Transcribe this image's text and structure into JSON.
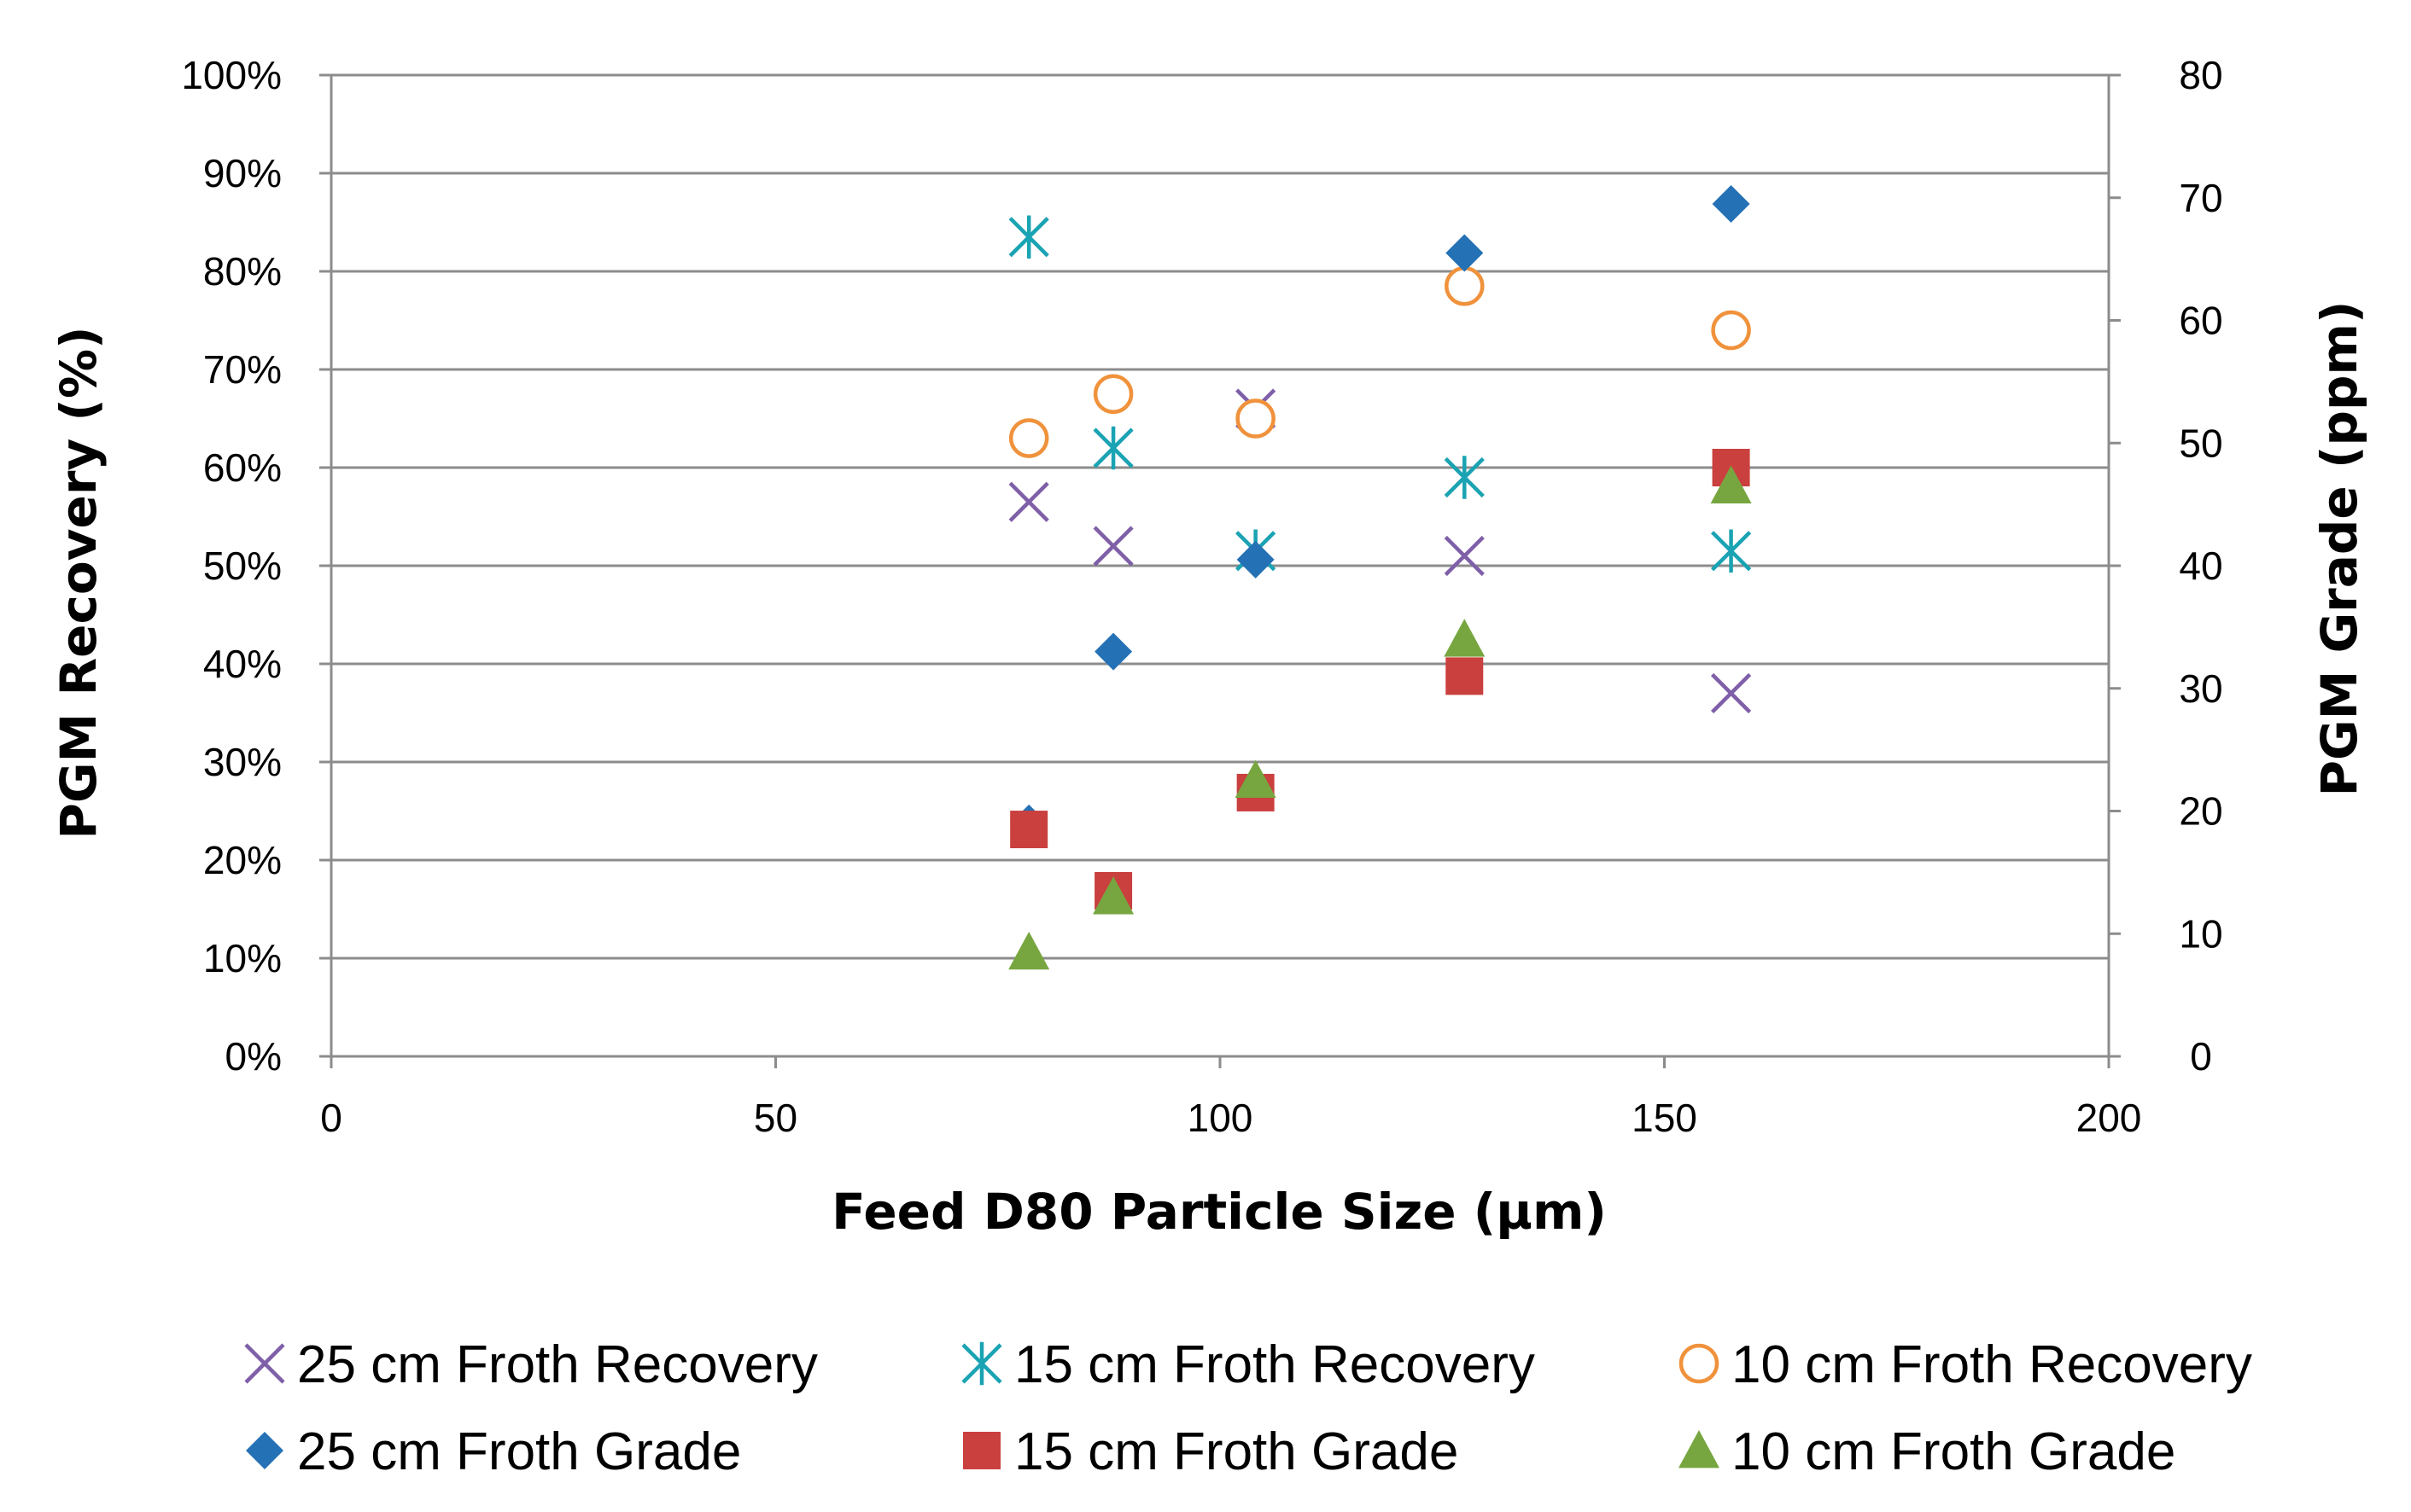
{
  "chart_data": {
    "type": "scatter",
    "title": "",
    "xlabel": "Feed D80 Particle Size (µm)",
    "ylabel_left": "PGM Recovery (%)",
    "ylabel_right": "PGM Grade (ppm)",
    "xlim": [
      0,
      200
    ],
    "ylim_left": [
      0,
      100
    ],
    "ylim_right": [
      0,
      80
    ],
    "x_ticks": [
      "0",
      "50",
      "100",
      "150",
      "200"
    ],
    "y_left_ticks": [
      "0%",
      "10%",
      "20%",
      "30%",
      "40%",
      "50%",
      "60%",
      "70%",
      "80%",
      "90%",
      "100%"
    ],
    "y_right_ticks": [
      "0",
      "10",
      "20",
      "30",
      "40",
      "50",
      "60",
      "70",
      "80"
    ],
    "grid": "horizontal",
    "legend_position": "bottom",
    "series": [
      {
        "name": "25 cm Froth Recovery",
        "axis": "left",
        "marker": "x",
        "color": "#7f5fa8",
        "points": [
          [
            78.5,
            56.5
          ],
          [
            88,
            52
          ],
          [
            104,
            66
          ],
          [
            127.5,
            51
          ],
          [
            157.5,
            37
          ]
        ]
      },
      {
        "name": "15 cm Froth Recovery",
        "axis": "left",
        "marker": "asterisk",
        "color": "#1aa3b3",
        "points": [
          [
            78.5,
            83.5
          ],
          [
            88,
            62
          ],
          [
            104,
            51.5
          ],
          [
            127.5,
            59
          ],
          [
            157.5,
            51.5
          ]
        ]
      },
      {
        "name": "10 cm Froth Recovery",
        "axis": "left",
        "marker": "circle-open",
        "color": "#f0923c",
        "points": [
          [
            78.5,
            63
          ],
          [
            88,
            67.5
          ],
          [
            104,
            65
          ],
          [
            127.5,
            78.5
          ],
          [
            157.5,
            74
          ]
        ]
      },
      {
        "name": "25 cm Froth Grade",
        "axis": "right",
        "marker": "diamond",
        "color": "#2471b5",
        "points": [
          [
            78.5,
            19
          ],
          [
            88,
            33
          ],
          [
            104,
            40.5
          ],
          [
            127.5,
            65.5
          ],
          [
            157.5,
            69.5
          ]
        ]
      },
      {
        "name": "15 cm Froth Grade",
        "axis": "right",
        "marker": "square",
        "color": "#c9403e",
        "points": [
          [
            78.5,
            18.5
          ],
          [
            88,
            13.5
          ],
          [
            104,
            21.5
          ],
          [
            127.5,
            31
          ],
          [
            157.5,
            48
          ]
        ]
      },
      {
        "name": "10 cm Froth Grade",
        "axis": "right",
        "marker": "triangle",
        "color": "#77a640",
        "points": [
          [
            78.5,
            8.5
          ],
          [
            88,
            13
          ],
          [
            104,
            22.5
          ],
          [
            127.5,
            34
          ],
          [
            157.5,
            46.5
          ]
        ]
      }
    ]
  }
}
